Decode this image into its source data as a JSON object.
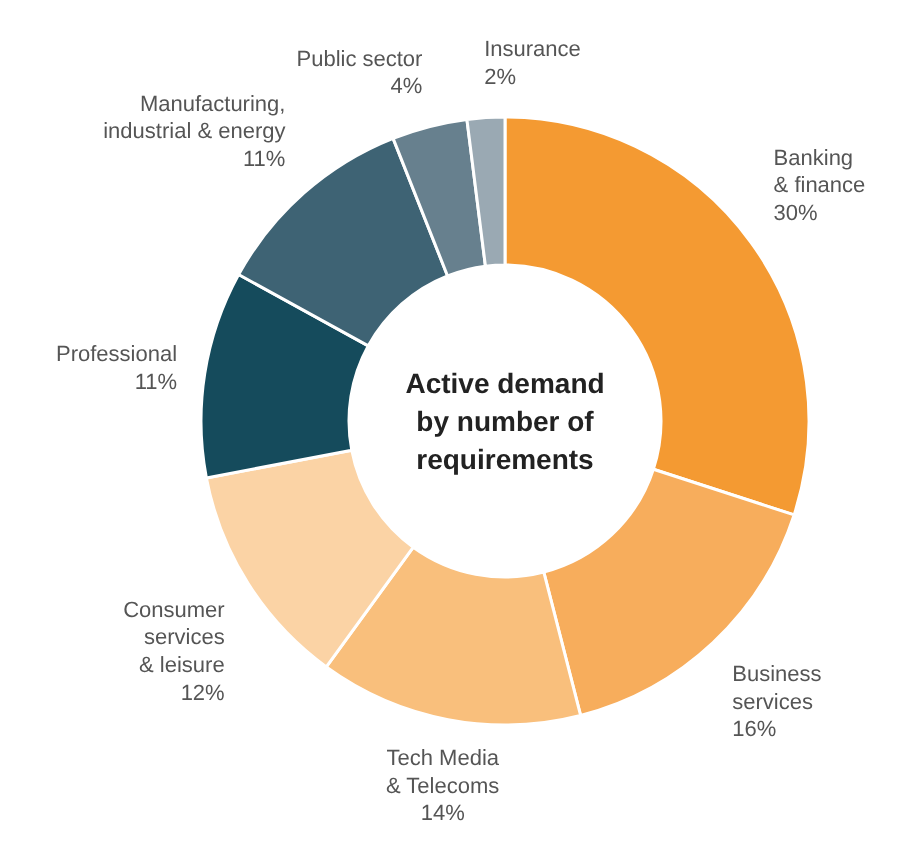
{
  "chart_data": {
    "type": "donut",
    "title": "Active demand\nby number of\nrequirements",
    "categories": [
      "Banking\n& finance",
      "Business\nservices",
      "Tech Media\n& Telecoms",
      "Consumer\nservices\n& leisure",
      "Professional",
      "Manufacturing,\nindustrial & energy",
      "Public sector",
      "Insurance"
    ],
    "values": [
      30,
      16,
      14,
      12,
      11,
      11,
      4,
      2
    ],
    "value_labels": [
      "30%",
      "16%",
      "14%",
      "12%",
      "11%",
      "11%",
      "4%",
      "2%"
    ],
    "colors": [
      "#f49a32",
      "#f7ad5c",
      "#f9bf7c",
      "#fbd3a5",
      "#154b5c",
      "#3e6374",
      "#67808e",
      "#9aa9b3"
    ]
  }
}
